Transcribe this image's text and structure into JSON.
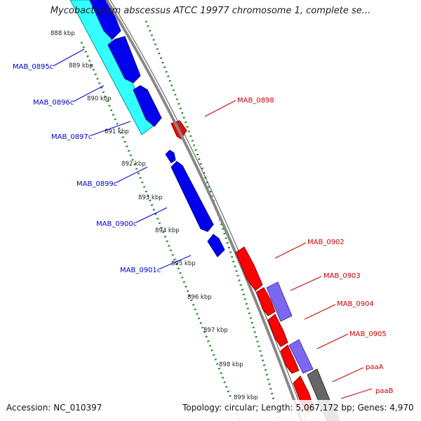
{
  "title": "Mycobacterium abscessus ATCC 19977 chromosome 1, complete se...",
  "footer": {
    "accession": "Accession: NC_010397",
    "summary": "Topology: circular; Length: 5,067,172 bp; Genes: 4,970"
  },
  "colors": {
    "forward_gene": "#ff0000",
    "reverse_gene": "#0000ee",
    "forward_label": "#cc0000",
    "reverse_label": "#0000cc",
    "cyan_feature": "#33ffff",
    "lavender_feature": "#7b68ee",
    "dark_feature": "#666666",
    "backbone": "#888888",
    "tick_marks": "#228b22"
  },
  "ticks": [
    "888 kbp",
    "889 kbp",
    "890 kbp",
    "891 kbp",
    "892 kbp",
    "893 kbp",
    "894 kbp",
    "895 kbp",
    "896 kbp",
    "897 kbp",
    "898 kbp",
    "899 kbp"
  ],
  "genes_reverse": [
    "MAB_0895c",
    "MAB_0896c",
    "MAB_0897c",
    "MAB_0899c",
    "MAB_0900c",
    "MAB_0901c"
  ],
  "genes_forward": [
    "MAB_0898",
    "MAB_0902",
    "MAB_0903",
    "MAB_0904",
    "MAB_0905",
    "paaA",
    "paaB"
  ]
}
